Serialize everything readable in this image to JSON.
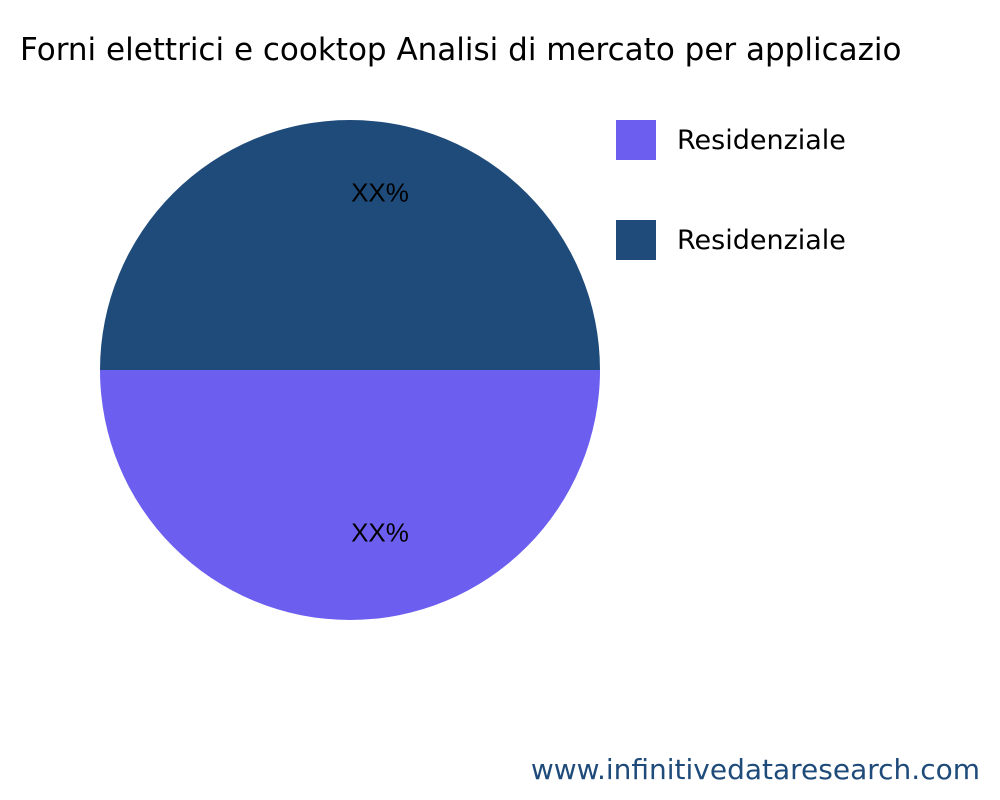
{
  "chart_data": {
    "type": "pie",
    "title": "Forni elettrici e cooktop Analisi di mercato per applicazio",
    "slices": [
      {
        "label": "Residenziale",
        "value": 50,
        "text": "XX%",
        "color": "#6c5ff0"
      },
      {
        "label": "Residenziale",
        "value": 50,
        "text": "XX%",
        "color": "#1f4b7a"
      }
    ],
    "legend_placement": "top-right"
  },
  "footer": {
    "url": "www.infinitivedataresearch.com",
    "color": "#1f4b7a"
  }
}
